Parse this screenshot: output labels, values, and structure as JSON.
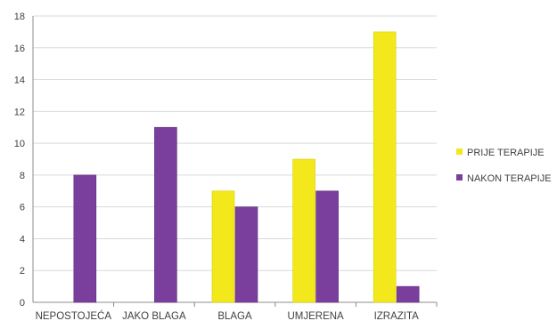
{
  "chart_data": {
    "type": "bar",
    "categories": [
      "NEPOSTOJEĆA",
      "JAKO BLAGA",
      "BLAGA",
      "UMJERENA",
      "IZRAZITA"
    ],
    "series": [
      {
        "name": "PRIJE TERAPIJE",
        "values": [
          0,
          0,
          7,
          9,
          17
        ],
        "color": "#f2e81b"
      },
      {
        "name": "NAKON TERAPIJE",
        "values": [
          8,
          11,
          6,
          7,
          1
        ],
        "color": "#7a3f9d"
      }
    ],
    "ylim": [
      0,
      18
    ],
    "yticks": [
      0,
      2,
      4,
      6,
      8,
      10,
      12,
      14,
      16,
      18
    ],
    "grid": true,
    "legend_position": "right",
    "title": "",
    "xlabel": "",
    "ylabel": ""
  }
}
